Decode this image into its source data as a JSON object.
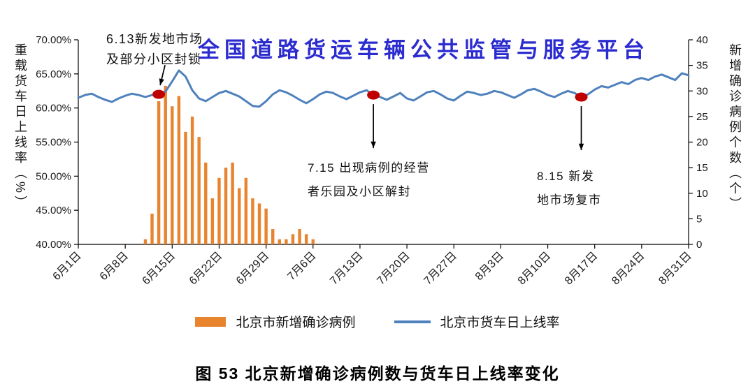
{
  "watermark": "全国道路货运车辆公共监管与服务平台",
  "caption": "图 53  北京新增确诊病例数与货车日上线率变化",
  "chart_data": {
    "type": "combo",
    "title": "图 53  北京新增确诊病例数与货车日上线率变化",
    "grid": false,
    "legend_position": "bottom",
    "left_axis": {
      "title": "重载货车日上线率（%）",
      "min": 40,
      "max": 70,
      "tick_labels": [
        "70.00%",
        "65.00%",
        "60.00%",
        "55.00%",
        "50.00%",
        "45.00%",
        "40.00%"
      ]
    },
    "right_axis": {
      "title": "新增确诊病例个数（个）",
      "min": 0,
      "max": 40,
      "tick_labels": [
        "40",
        "35",
        "30",
        "25",
        "20",
        "15",
        "10",
        "5",
        "0"
      ]
    },
    "x_tick_indices": [
      0,
      7,
      14,
      21,
      28,
      35,
      42,
      49,
      56,
      63,
      70,
      77,
      84,
      91
    ],
    "x_tick_labels": [
      "6月1日",
      "6月8日",
      "6月15日",
      "6月22日",
      "6月29日",
      "7月6日",
      "7月13日",
      "7月20日",
      "7月27日",
      "8月3日",
      "8月10日",
      "8月17日",
      "8月24日",
      "8月31日"
    ],
    "series": [
      {
        "name": "北京市新增确诊病例",
        "type": "bar",
        "axis": "right",
        "values": [
          0,
          0,
          0,
          0,
          0,
          0,
          0,
          0,
          0,
          0,
          1,
          6,
          28,
          31,
          27,
          29,
          22,
          25,
          21,
          16,
          9,
          13,
          15,
          16,
          11,
          13,
          9,
          8,
          7,
          3,
          1,
          1,
          2,
          3,
          2,
          1,
          0,
          0,
          0,
          0,
          0,
          0,
          0,
          0,
          0,
          0,
          0,
          0,
          0,
          0,
          0,
          0,
          0,
          0,
          0,
          0,
          0,
          0,
          0,
          0,
          0,
          0,
          0,
          0,
          0,
          0,
          0,
          0,
          0,
          0,
          0,
          0,
          0,
          0,
          0,
          0,
          0,
          0,
          0,
          0,
          0,
          0,
          0,
          0,
          0,
          0,
          0,
          0,
          0,
          0,
          0,
          0
        ]
      },
      {
        "name": "北京市货车日上线率",
        "type": "line",
        "axis": "left",
        "values": [
          61.5,
          61.9,
          62.1,
          61.6,
          61.2,
          60.9,
          61.4,
          61.8,
          62.1,
          61.9,
          61.6,
          61.9,
          62.0,
          62.4,
          63.9,
          65.5,
          64.6,
          62.6,
          61.4,
          61.0,
          61.6,
          62.2,
          62.5,
          62.1,
          61.7,
          61.0,
          60.3,
          60.2,
          61.0,
          62.0,
          62.6,
          62.3,
          61.8,
          61.2,
          60.7,
          61.3,
          62.0,
          62.4,
          62.2,
          61.7,
          61.3,
          61.8,
          62.3,
          62.6,
          61.9,
          61.6,
          61.2,
          61.7,
          62.2,
          61.4,
          61.1,
          61.7,
          62.3,
          62.5,
          62.0,
          61.4,
          61.1,
          61.8,
          62.4,
          62.2,
          61.9,
          62.1,
          62.5,
          62.3,
          61.9,
          61.5,
          62.0,
          62.6,
          62.8,
          62.4,
          61.9,
          61.6,
          62.1,
          62.5,
          62.2,
          61.6,
          62.0,
          62.7,
          63.2,
          63.0,
          63.4,
          63.8,
          63.5,
          64.1,
          64.4,
          64.1,
          64.6,
          64.9,
          64.5,
          64.1,
          65.1,
          64.8
        ]
      }
    ],
    "markers": [
      {
        "label": "6.13",
        "day_index": 12
      },
      {
        "label": "7.15",
        "day_index": 44
      },
      {
        "label": "8.15",
        "day_index": 75
      }
    ],
    "annotations": [
      {
        "lines": [
          "6.13新发地市场",
          "及部分小区封锁"
        ],
        "day_index": 12,
        "arrow": "to-dot"
      },
      {
        "lines": [
          "7.15 出现病例的经营",
          "者乐园及小区解封"
        ],
        "day_index": 44,
        "arrow": "down"
      },
      {
        "lines": [
          "8.15  新发",
          "地市场复市"
        ],
        "day_index": 75,
        "arrow": "down"
      }
    ],
    "colors": {
      "bar": "#e8832e",
      "line": "#4f81bd",
      "marker": "#c00000",
      "watermark": "#2b2bd0",
      "axis": "#000000"
    }
  }
}
